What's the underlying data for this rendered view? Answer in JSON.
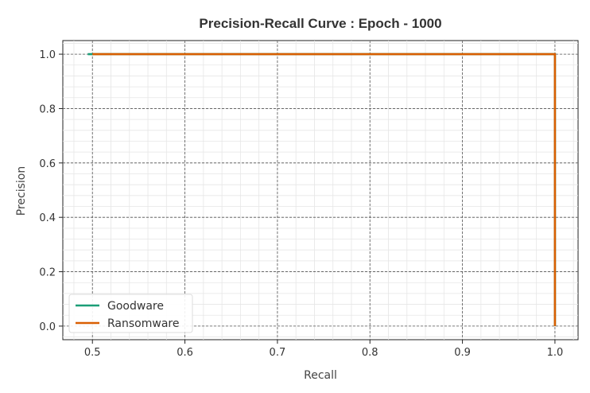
{
  "chart_data": {
    "type": "line",
    "title": "Precision-Recall Curve : Epoch - 1000",
    "xlabel": "Recall",
    "ylabel": "Precision",
    "xlim": [
      0.468,
      1.025
    ],
    "ylim": [
      -0.05,
      1.05
    ],
    "x_ticks": [
      0.5,
      0.6,
      0.7,
      0.8,
      0.9,
      1.0
    ],
    "x_tick_labels": [
      "0.5",
      "0.6",
      "0.7",
      "0.8",
      "0.9",
      "1.0"
    ],
    "y_ticks": [
      0.0,
      0.2,
      0.4,
      0.6,
      0.8,
      1.0
    ],
    "y_tick_labels": [
      "0.0",
      "0.2",
      "0.4",
      "0.6",
      "0.8",
      "1.0"
    ],
    "grid": true,
    "minor_grid": true,
    "legend_position": "lower-left",
    "series": [
      {
        "name": "Goodware",
        "color": "#1b9e77",
        "x": [
          0.495,
          1.0,
          1.0
        ],
        "y": [
          1.0,
          1.0,
          0.0
        ]
      },
      {
        "name": "Ransomware",
        "color": "#d95f02",
        "x": [
          0.5,
          1.0,
          1.0
        ],
        "y": [
          1.0,
          1.0,
          0.0
        ]
      }
    ]
  }
}
